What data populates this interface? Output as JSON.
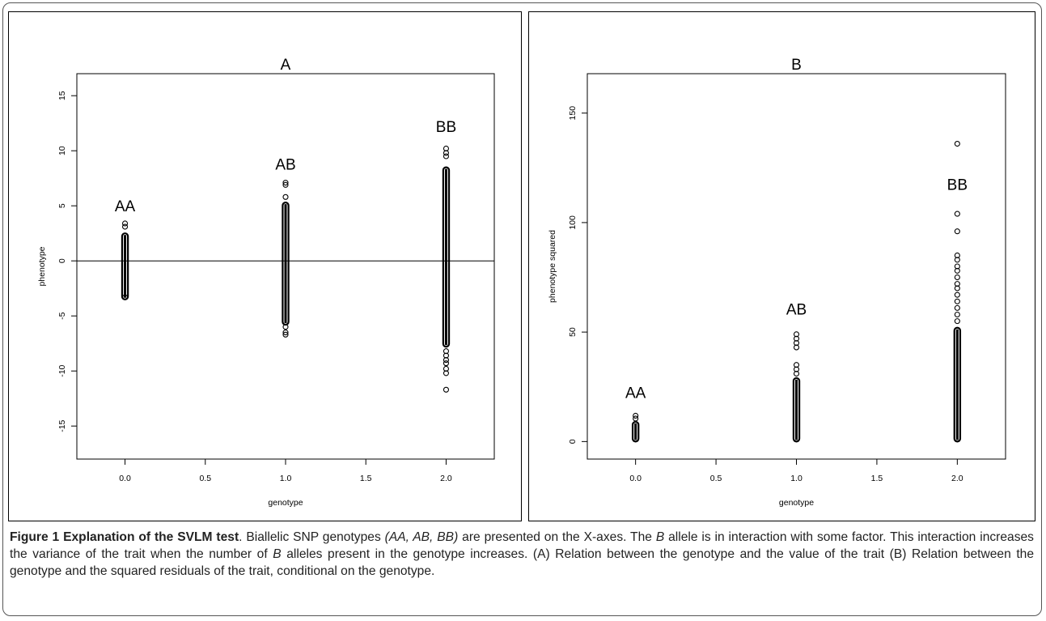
{
  "caption": {
    "label": "Figure 1",
    "title": "Explanation of the SVLM test",
    "body": [
      {
        "t": ". Biallelic SNP genotypes ",
        "i": false
      },
      {
        "t": "(AA, AB, BB)",
        "i": true
      },
      {
        "t": " are presented on the X-axes. The ",
        "i": false
      },
      {
        "t": "B",
        "i": true
      },
      {
        "t": " allele is in interaction with some factor. This interaction increases the variance of the trait when the number of ",
        "i": false
      },
      {
        "t": "B",
        "i": true
      },
      {
        "t": " alleles present in the genotype increases. (A) Relation between the genotype and the value of the trait (B) Relation between the genotype and the squared residuals of the trait, conditional on the genotype.",
        "i": false
      }
    ]
  },
  "chart_data": [
    {
      "type": "scatter",
      "title": "A",
      "xlabel": "genotype",
      "ylabel": "phenotype",
      "xlim": [
        -0.3,
        2.3
      ],
      "ylim": [
        -18,
        17
      ],
      "xticks": [
        "0.0",
        "0.5",
        "1.0",
        "1.5",
        "2.0"
      ],
      "yticks": [
        "-15",
        "-10",
        "-5",
        "0",
        "5",
        "10",
        "15"
      ],
      "hline": 0,
      "groups": [
        {
          "x": 0,
          "label": "AA",
          "label_y": 4.5,
          "min": -3.5,
          "max": 2.5,
          "outliers": [
            3.1,
            3.4,
            -3.3
          ]
        },
        {
          "x": 1,
          "label": "AB",
          "label_y": 8.3,
          "min": -5.8,
          "max": 5.3,
          "outliers": [
            5.8,
            6.9,
            7.1,
            -6.0,
            -6.5,
            -6.7
          ]
        },
        {
          "x": 2,
          "label": "BB",
          "label_y": 11.7,
          "min": -7.8,
          "max": 8.5,
          "outliers": [
            9.5,
            9.8,
            10.2,
            -8.2,
            -8.6,
            -9.0,
            -9.3,
            -9.8,
            -10.2,
            -11.7
          ]
        }
      ]
    },
    {
      "type": "scatter",
      "title": "B",
      "xlabel": "genotype",
      "ylabel": "phenotype squared",
      "xlim": [
        -0.3,
        2.3
      ],
      "ylim": [
        -8,
        168
      ],
      "xticks": [
        "0.0",
        "0.5",
        "1.0",
        "1.5",
        "2.0"
      ],
      "yticks": [
        "0",
        "50",
        "100",
        "150"
      ],
      "groups": [
        {
          "x": 0,
          "label": "AA",
          "label_y": 20,
          "min": 0,
          "max": 9,
          "outliers": [
            10.5,
            11.8
          ]
        },
        {
          "x": 1,
          "label": "AB",
          "label_y": 58,
          "min": 0,
          "max": 29,
          "outliers": [
            31,
            33,
            35,
            43,
            45,
            47,
            49
          ]
        },
        {
          "x": 2,
          "label": "BB",
          "label_y": 115,
          "min": 0,
          "max": 52,
          "outliers": [
            55,
            58,
            61,
            64,
            67,
            70,
            72,
            75,
            78,
            80,
            83,
            85,
            96,
            104,
            136
          ]
        }
      ]
    }
  ]
}
